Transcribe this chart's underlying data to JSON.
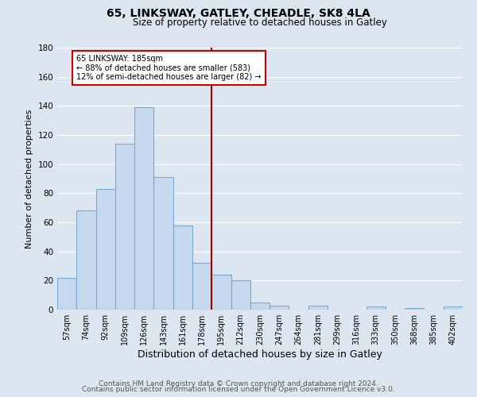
{
  "title": "65, LINKSWAY, GATLEY, CHEADLE, SK8 4LA",
  "subtitle": "Size of property relative to detached houses in Gatley",
  "xlabel": "Distribution of detached houses by size in Gatley",
  "ylabel": "Number of detached properties",
  "categories": [
    "57sqm",
    "74sqm",
    "92sqm",
    "109sqm",
    "126sqm",
    "143sqm",
    "161sqm",
    "178sqm",
    "195sqm",
    "212sqm",
    "230sqm",
    "247sqm",
    "264sqm",
    "281sqm",
    "299sqm",
    "316sqm",
    "333sqm",
    "350sqm",
    "368sqm",
    "385sqm",
    "402sqm"
  ],
  "values": [
    22,
    68,
    83,
    114,
    139,
    91,
    58,
    32,
    24,
    20,
    5,
    3,
    0,
    3,
    0,
    0,
    2,
    0,
    1,
    0,
    2
  ],
  "bar_color": "#c5d8ed",
  "bar_edge_color": "#7aaacf",
  "vline_color": "#aa0000",
  "annotation_title": "65 LINKSWAY: 185sqm",
  "annotation_line1": "← 88% of detached houses are smaller (583)",
  "annotation_line2": "12% of semi-detached houses are larger (82) →",
  "annotation_box_color": "#ffffff",
  "annotation_box_edgecolor": "#cc0000",
  "ylim": [
    0,
    180
  ],
  "yticks": [
    0,
    20,
    40,
    60,
    80,
    100,
    120,
    140,
    160,
    180
  ],
  "footer1": "Contains HM Land Registry data © Crown copyright and database right 2024.",
  "footer2": "Contains public sector information licensed under the Open Government Licence v3.0.",
  "bg_color": "#dce6f0",
  "plot_bg_color": "#dce6f0",
  "grid_color": "#ffffff",
  "title_fontsize": 10,
  "subtitle_fontsize": 8.5,
  "xlabel_fontsize": 9,
  "ylabel_fontsize": 8,
  "tick_fontsize": 7,
  "footer_fontsize": 6.5
}
